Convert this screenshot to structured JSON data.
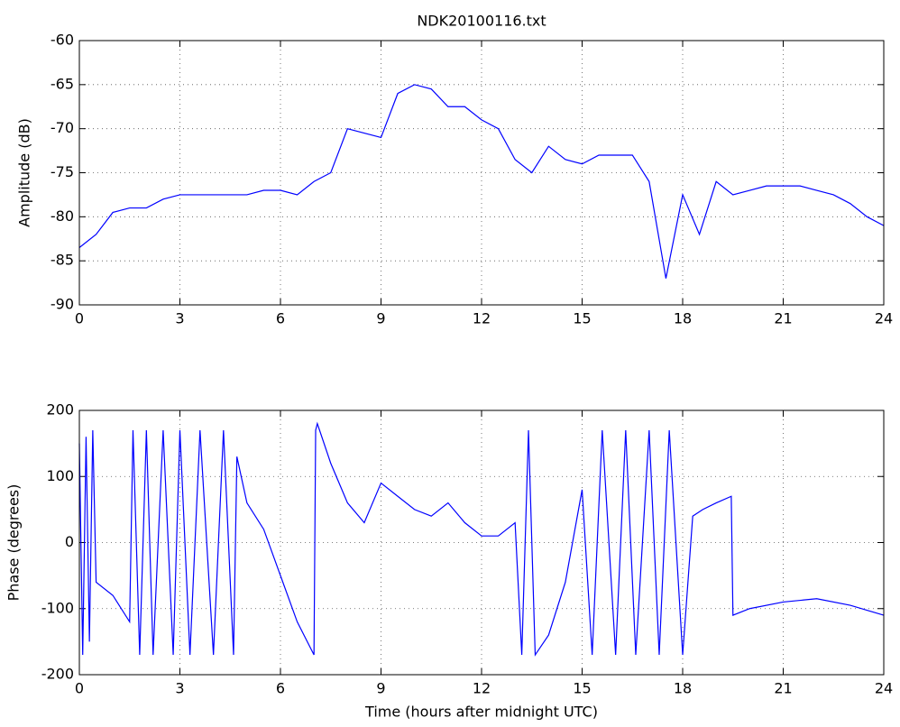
{
  "chart_data": [
    {
      "type": "line",
      "title": "NDK20100116.txt",
      "y_label": "Amplitude (dB)",
      "x": [
        0,
        0.5,
        1,
        1.5,
        2,
        2.5,
        3,
        3.5,
        4,
        4.5,
        5,
        5.5,
        6,
        6.5,
        7,
        7.5,
        8,
        8.5,
        9,
        9.5,
        10,
        10.5,
        11,
        11.5,
        12,
        12.5,
        13,
        13.5,
        14,
        14.5,
        15,
        15.5,
        16,
        16.5,
        17,
        17.5,
        18,
        18.5,
        19,
        19.5,
        20,
        20.5,
        21,
        21.5,
        22,
        22.5,
        23,
        23.5,
        24
      ],
      "values": [
        -83.5,
        -82,
        -79.5,
        -79,
        -79,
        -78,
        -77.5,
        -77.5,
        -77.5,
        -77.5,
        -77.5,
        -77,
        -77,
        -77.5,
        -76,
        -75,
        -70,
        -70.5,
        -71,
        -66,
        -65,
        -65.5,
        -67.5,
        -67.5,
        -69,
        -70,
        -73.5,
        -75,
        -72,
        -73.5,
        -74,
        -73,
        -73,
        -73,
        -76,
        -87,
        -77.5,
        -82,
        -76,
        -77.5,
        -77,
        -76.5,
        -76.5,
        -76.5,
        -77,
        -77.5,
        -78.5,
        -80,
        -81
      ],
      "color": "#0000ff",
      "xlim": [
        0,
        24
      ],
      "xticks": [
        0,
        3,
        6,
        9,
        12,
        15,
        18,
        21,
        24
      ],
      "ylim": [
        -90,
        -60
      ],
      "yticks": [
        -90,
        -85,
        -80,
        -75,
        -70,
        -65,
        -60
      ],
      "grid": true
    },
    {
      "type": "line",
      "x_label": "Time (hours after midnight UTC)",
      "y_label": "Phase (degrees)",
      "x": [
        0,
        0.1,
        0.2,
        0.3,
        0.4,
        0.5,
        1,
        1.5,
        1.6,
        1.8,
        2,
        2.2,
        2.5,
        2.8,
        3,
        3.3,
        3.6,
        4,
        4.3,
        4.6,
        4.7,
        5,
        5.5,
        6,
        6.5,
        7,
        7.05,
        7.1,
        7.5,
        8,
        8.5,
        9,
        9.5,
        10,
        10.5,
        11,
        11.5,
        12,
        12.5,
        13,
        13.2,
        13.4,
        13.6,
        14,
        14.5,
        15,
        15.3,
        15.6,
        16,
        16.3,
        16.6,
        17,
        17.3,
        17.6,
        18,
        18.3,
        18.6,
        19,
        19.45,
        19.5,
        20,
        21,
        22,
        23,
        24
      ],
      "values": [
        150,
        -170,
        160,
        -150,
        170,
        -60,
        -80,
        -120,
        170,
        -170,
        170,
        -170,
        170,
        -170,
        170,
        -170,
        170,
        -170,
        170,
        -170,
        130,
        60,
        20,
        -50,
        -120,
        -170,
        170,
        180,
        120,
        60,
        30,
        90,
        70,
        50,
        40,
        60,
        30,
        10,
        10,
        30,
        -170,
        170,
        -170,
        -140,
        -60,
        80,
        -170,
        170,
        -170,
        170,
        -170,
        170,
        -170,
        170,
        -170,
        40,
        50,
        60,
        70,
        -110,
        -100,
        -90,
        -85,
        -95,
        -110
      ],
      "color": "#0000ff",
      "xlim": [
        0,
        24
      ],
      "xticks": [
        0,
        3,
        6,
        9,
        12,
        15,
        18,
        21,
        24
      ],
      "ylim": [
        -200,
        200
      ],
      "yticks": [
        -200,
        -100,
        0,
        100,
        200
      ],
      "grid": true
    }
  ]
}
